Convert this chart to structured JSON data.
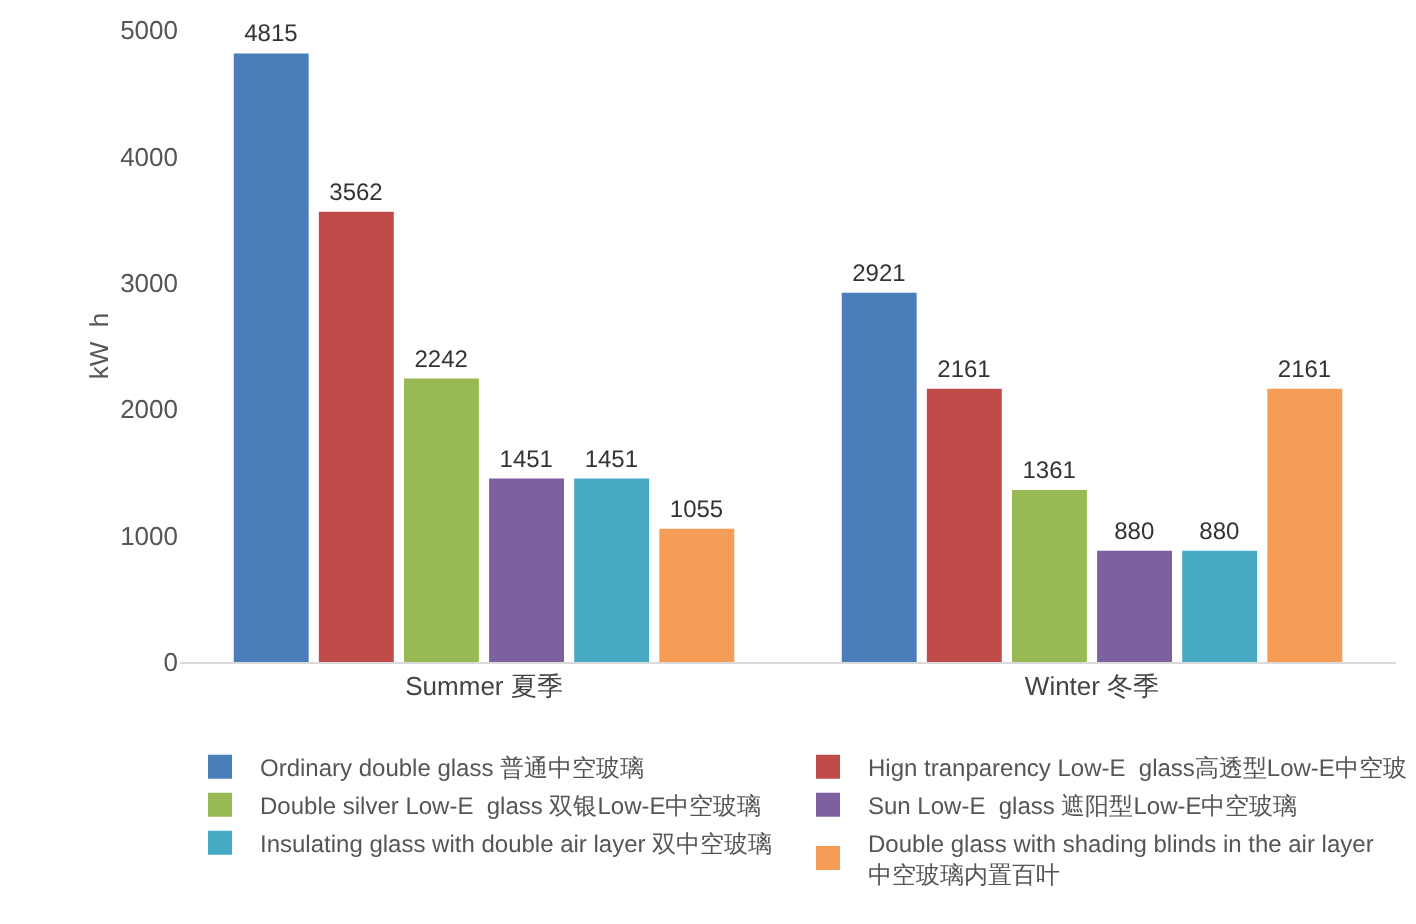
{
  "chart_data": {
    "type": "bar",
    "ylabel": "kW  h",
    "categories": [
      "Summer 夏季",
      "Winter 冬季"
    ],
    "series": [
      {
        "name": "Ordinary double glass 普通中空玻璃",
        "color": "#4a7ebb",
        "values": [
          4815,
          2921
        ]
      },
      {
        "name": "Hign tranparency Low-E  glass高透型Low-E中空玻",
        "color": "#be4b48",
        "values": [
          3562,
          2161
        ]
      },
      {
        "name": "Double silver Low-E  glass 双银Low-E中空玻璃",
        "color": "#98b954",
        "values": [
          2242,
          1361
        ]
      },
      {
        "name": "Sun Low-E  glass 遮阳型Low-E中空玻璃",
        "color": "#7d60a0",
        "values": [
          1451,
          880
        ]
      },
      {
        "name": "Insulating glass with double air layer 双中空玻璃",
        "color": "#46aac5",
        "values": [
          1451,
          880
        ]
      },
      {
        "name": "Double glass with shading blinds in the air layer\n中空玻璃内置百叶",
        "color": "#f59d56",
        "values": [
          1055,
          2161
        ]
      }
    ],
    "ylim": [
      0,
      5000
    ],
    "yticks": [
      0,
      1000,
      2000,
      3000,
      4000,
      5000
    ],
    "data_labels": true,
    "legend": "bottom"
  }
}
